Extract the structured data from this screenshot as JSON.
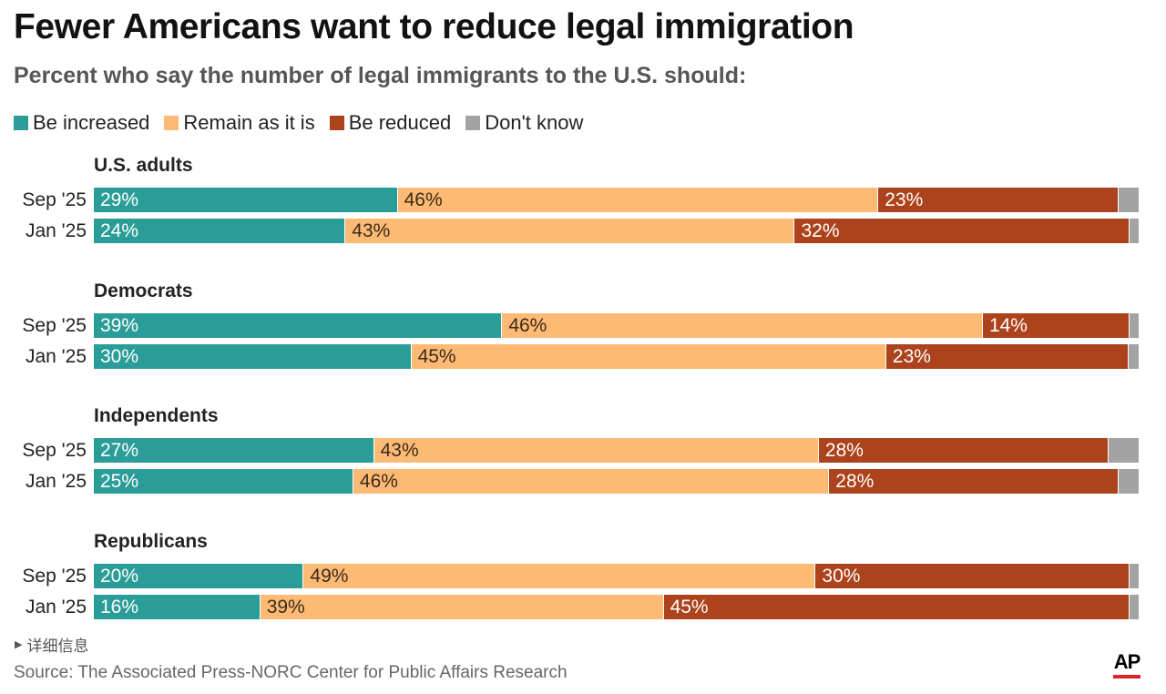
{
  "chart_data": {
    "type": "bar",
    "orientation": "horizontal-stacked-100",
    "title": "Fewer Americans want to reduce legal immigration",
    "subtitle": "Percent who say the number of legal immigrants to the U.S. should:",
    "legend": [
      {
        "name": "Be increased",
        "color": "#2a9d98"
      },
      {
        "name": "Remain as it is",
        "color": "#fdba74"
      },
      {
        "name": "Be reduced",
        "color": "#ad431c"
      },
      {
        "name": "Don't know",
        "color": "#a3a3a3"
      }
    ],
    "xlim": [
      0,
      100
    ],
    "groups": [
      {
        "name": "U.S. adults",
        "rows": [
          {
            "label": "Sep '25",
            "values": [
              29,
              46,
              23,
              2
            ],
            "labels": [
              "29%",
              "46%",
              "23%",
              ""
            ]
          },
          {
            "label": "Jan '25",
            "values": [
              24,
              43,
              32,
              1
            ],
            "labels": [
              "24%",
              "43%",
              "32%",
              ""
            ]
          }
        ]
      },
      {
        "name": "Democrats",
        "rows": [
          {
            "label": "Sep '25",
            "values": [
              39,
              46,
              14,
              1
            ],
            "labels": [
              "39%",
              "46%",
              "14%",
              ""
            ]
          },
          {
            "label": "Jan '25",
            "values": [
              30,
              45,
              23,
              1
            ],
            "labels": [
              "30%",
              "45%",
              "23%",
              ""
            ]
          }
        ]
      },
      {
        "name": "Independents",
        "rows": [
          {
            "label": "Sep '25",
            "values": [
              27,
              43,
              28,
              3
            ],
            "labels": [
              "27%",
              "43%",
              "28%",
              ""
            ]
          },
          {
            "label": "Jan '25",
            "values": [
              25,
              46,
              28,
              2
            ],
            "labels": [
              "25%",
              "46%",
              "28%",
              ""
            ]
          }
        ]
      },
      {
        "name": "Republicans",
        "rows": [
          {
            "label": "Sep '25",
            "values": [
              20,
              49,
              30,
              1
            ],
            "labels": [
              "20%",
              "49%",
              "30%",
              ""
            ]
          },
          {
            "label": "Jan '25",
            "values": [
              16,
              39,
              45,
              1
            ],
            "labels": [
              "16%",
              "39%",
              "45%",
              ""
            ]
          }
        ]
      }
    ]
  },
  "details_label": "详细信息",
  "source": "Source: The Associated Press-NORC Center for Public Affairs Research",
  "logo_text": "AP"
}
